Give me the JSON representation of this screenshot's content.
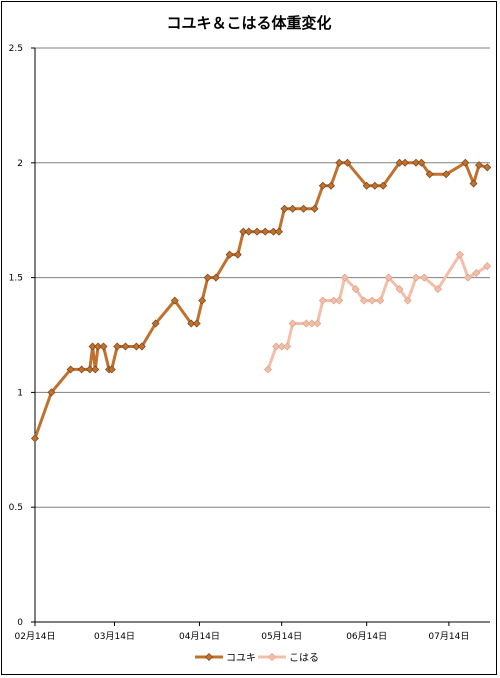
{
  "chart_data": {
    "type": "line",
    "title": "コユキ＆こはる体重変化",
    "xlabel": "",
    "ylabel": "",
    "ylim": [
      0,
      2.5
    ],
    "yticks": [
      "0",
      "0.5",
      "1",
      "1.5",
      "2",
      "2.5"
    ],
    "xticks": [
      "02月14日",
      "03月14日",
      "04月14日",
      "05月14日",
      "06月14日",
      "07月14日"
    ],
    "xtick_positions": [
      "2012-02-14",
      "2012-03-14",
      "2012-04-14",
      "2012-05-14",
      "2012-06-14",
      "2012-07-14"
    ],
    "xlim": [
      "2012-02-14",
      "2012-07-29"
    ],
    "grid": "horizontal",
    "legend_position": "bottom",
    "series": [
      {
        "name": "コユキ",
        "color": "#c0712e",
        "marker": "diamond",
        "points": [
          [
            "2012-02-14",
            0.8
          ],
          [
            "2012-02-20",
            1.0
          ],
          [
            "2012-02-27",
            1.1
          ],
          [
            "2012-03-02",
            1.1
          ],
          [
            "2012-03-05",
            1.1
          ],
          [
            "2012-03-06",
            1.2
          ],
          [
            "2012-03-07",
            1.1
          ],
          [
            "2012-03-08",
            1.2
          ],
          [
            "2012-03-10",
            1.2
          ],
          [
            "2012-03-12",
            1.1
          ],
          [
            "2012-03-13",
            1.1
          ],
          [
            "2012-03-15",
            1.2
          ],
          [
            "2012-03-18",
            1.2
          ],
          [
            "2012-03-22",
            1.2
          ],
          [
            "2012-03-24",
            1.2
          ],
          [
            "2012-03-29",
            1.3
          ],
          [
            "2012-04-05",
            1.4
          ],
          [
            "2012-04-11",
            1.3
          ],
          [
            "2012-04-13",
            1.3
          ],
          [
            "2012-04-15",
            1.4
          ],
          [
            "2012-04-17",
            1.5
          ],
          [
            "2012-04-20",
            1.5
          ],
          [
            "2012-04-25",
            1.6
          ],
          [
            "2012-04-28",
            1.6
          ],
          [
            "2012-04-30",
            1.7
          ],
          [
            "2012-05-02",
            1.7
          ],
          [
            "2012-05-05",
            1.7
          ],
          [
            "2012-05-08",
            1.7
          ],
          [
            "2012-05-11",
            1.7
          ],
          [
            "2012-05-13",
            1.7
          ],
          [
            "2012-05-15",
            1.8
          ],
          [
            "2012-05-18",
            1.8
          ],
          [
            "2012-05-22",
            1.8
          ],
          [
            "2012-05-26",
            1.8
          ],
          [
            "2012-05-29",
            1.9
          ],
          [
            "2012-06-01",
            1.9
          ],
          [
            "2012-06-04",
            2.0
          ],
          [
            "2012-06-07",
            2.0
          ],
          [
            "2012-06-14",
            1.9
          ],
          [
            "2012-06-17",
            1.9
          ],
          [
            "2012-06-20",
            1.9
          ],
          [
            "2012-06-26",
            2.0
          ],
          [
            "2012-06-28",
            2.0
          ],
          [
            "2012-07-02",
            2.0
          ],
          [
            "2012-07-04",
            2.0
          ],
          [
            "2012-07-07",
            1.95
          ],
          [
            "2012-07-13",
            1.95
          ],
          [
            "2012-07-20",
            2.0
          ],
          [
            "2012-07-23",
            1.91
          ],
          [
            "2012-07-25",
            1.99
          ],
          [
            "2012-07-28",
            1.98
          ]
        ]
      },
      {
        "name": "こはる",
        "color": "#f4bfa8",
        "marker": "diamond",
        "points": [
          [
            "2012-05-09",
            1.1
          ],
          [
            "2012-05-12",
            1.2
          ],
          [
            "2012-05-14",
            1.2
          ],
          [
            "2012-05-16",
            1.2
          ],
          [
            "2012-05-18",
            1.3
          ],
          [
            "2012-05-23",
            1.3
          ],
          [
            "2012-05-25",
            1.3
          ],
          [
            "2012-05-27",
            1.3
          ],
          [
            "2012-05-29",
            1.4
          ],
          [
            "2012-06-02",
            1.4
          ],
          [
            "2012-06-04",
            1.4
          ],
          [
            "2012-06-06",
            1.5
          ],
          [
            "2012-06-10",
            1.45
          ],
          [
            "2012-06-13",
            1.4
          ],
          [
            "2012-06-16",
            1.4
          ],
          [
            "2012-06-19",
            1.4
          ],
          [
            "2012-06-22",
            1.5
          ],
          [
            "2012-06-26",
            1.45
          ],
          [
            "2012-06-29",
            1.4
          ],
          [
            "2012-07-02",
            1.5
          ],
          [
            "2012-07-05",
            1.5
          ],
          [
            "2012-07-10",
            1.45
          ],
          [
            "2012-07-18",
            1.6
          ],
          [
            "2012-07-21",
            1.5
          ],
          [
            "2012-07-24",
            1.52
          ],
          [
            "2012-07-28",
            1.55
          ]
        ]
      }
    ]
  }
}
